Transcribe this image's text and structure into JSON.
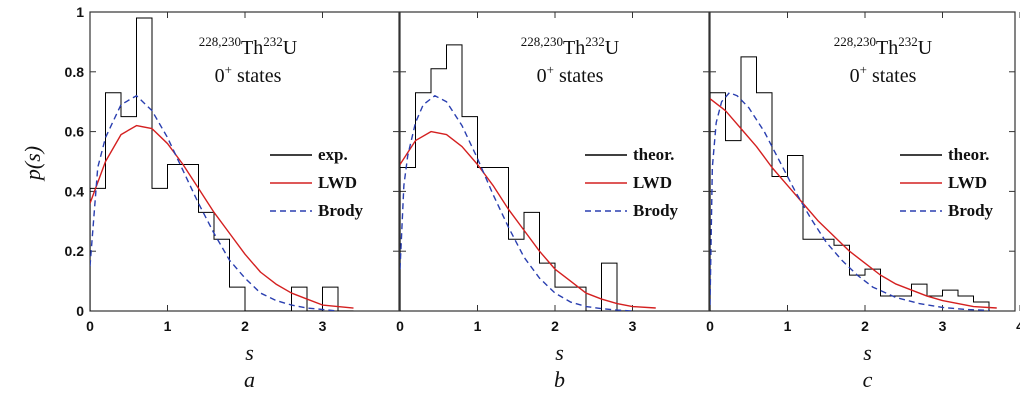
{
  "ylabel": "p(s)",
  "colors": {
    "hist": "#000000",
    "lwd": "#d42020",
    "brody": "#2a3fb0"
  },
  "chart_data": [
    {
      "type": "line",
      "panel_label": "a",
      "xlabel": "s",
      "xlim": [
        0,
        4
      ],
      "ylim": [
        0,
        1
      ],
      "xticks": [
        "0",
        "1",
        "2",
        "3"
      ],
      "yticks": [
        "0",
        "0.2",
        "0.4",
        "0.6",
        "0.8",
        "1"
      ],
      "title": {
        "sup_left": "228,230",
        "mid": "Th",
        "sup_right": "232",
        "end": "U",
        "line2_base": "0",
        "line2_sup": "+",
        "line2_rest": " states"
      },
      "legend": [
        "exp.",
        "LWD",
        "Brody"
      ],
      "histogram": {
        "bin_width": 0.2,
        "bins": [
          0,
          0.2,
          0.4,
          0.6,
          0.8,
          1.0,
          1.2,
          1.4,
          1.6,
          1.8,
          2.0,
          2.2,
          2.4,
          2.6,
          2.8,
          3.0,
          3.2
        ],
        "values": [
          0.41,
          0.73,
          0.65,
          0.98,
          0.41,
          0.49,
          0.49,
          0.33,
          0.24,
          0.08,
          0.0,
          0.0,
          0.0,
          0.08,
          0.0,
          0.08,
          0.0
        ]
      },
      "series": [
        {
          "name": "LWD",
          "x": [
            0,
            0.2,
            0.4,
            0.6,
            0.8,
            1.0,
            1.2,
            1.4,
            1.6,
            1.8,
            2.0,
            2.2,
            2.4,
            2.6,
            2.8,
            3.0,
            3.2,
            3.4
          ],
          "y": [
            0.36,
            0.5,
            0.59,
            0.62,
            0.61,
            0.56,
            0.49,
            0.41,
            0.33,
            0.26,
            0.19,
            0.13,
            0.09,
            0.06,
            0.04,
            0.02,
            0.015,
            0.01
          ]
        },
        {
          "name": "Brody",
          "x": [
            0,
            0.1,
            0.2,
            0.4,
            0.6,
            0.8,
            1.0,
            1.2,
            1.4,
            1.6,
            1.8,
            2.0,
            2.2,
            2.4,
            2.6,
            2.8,
            3.0,
            3.2
          ],
          "y": [
            0.15,
            0.48,
            0.58,
            0.69,
            0.72,
            0.67,
            0.58,
            0.47,
            0.36,
            0.26,
            0.17,
            0.11,
            0.06,
            0.035,
            0.02,
            0.01,
            0.005,
            0.0
          ]
        }
      ]
    },
    {
      "type": "line",
      "panel_label": "b",
      "xlabel": "s",
      "xlim": [
        0,
        4
      ],
      "ylim": [
        0,
        1
      ],
      "xticks": [
        "0",
        "1",
        "2",
        "3"
      ],
      "yticks": [],
      "title": {
        "sup_left": "228,230",
        "mid": "Th",
        "sup_right": "232",
        "end": "U",
        "line2_base": "0",
        "line2_sup": "+",
        "line2_rest": " states"
      },
      "legend": [
        "theor.",
        "LWD",
        "Brody"
      ],
      "histogram": {
        "bin_width": 0.2,
        "bins": [
          0,
          0.2,
          0.4,
          0.6,
          0.8,
          1.0,
          1.2,
          1.4,
          1.6,
          1.8,
          2.0,
          2.2,
          2.4,
          2.6,
          2.8
        ],
        "values": [
          0.48,
          0.73,
          0.81,
          0.89,
          0.65,
          0.48,
          0.48,
          0.24,
          0.33,
          0.16,
          0.08,
          0.08,
          0.0,
          0.16,
          0.0
        ]
      },
      "series": [
        {
          "name": "LWD",
          "x": [
            0,
            0.2,
            0.4,
            0.6,
            0.8,
            1.0,
            1.2,
            1.4,
            1.6,
            1.8,
            2.0,
            2.2,
            2.4,
            2.6,
            2.8,
            3.0,
            3.3
          ],
          "y": [
            0.49,
            0.57,
            0.6,
            0.59,
            0.55,
            0.49,
            0.42,
            0.34,
            0.27,
            0.2,
            0.14,
            0.1,
            0.06,
            0.04,
            0.025,
            0.015,
            0.01
          ]
        },
        {
          "name": "Brody",
          "x": [
            0,
            0.05,
            0.1,
            0.2,
            0.3,
            0.45,
            0.6,
            0.8,
            1.0,
            1.2,
            1.4,
            1.6,
            1.8,
            2.0,
            2.2,
            2.4,
            2.6,
            2.8,
            3.0
          ],
          "y": [
            0.14,
            0.42,
            0.52,
            0.63,
            0.69,
            0.72,
            0.7,
            0.62,
            0.51,
            0.39,
            0.28,
            0.18,
            0.11,
            0.06,
            0.03,
            0.015,
            0.008,
            0.003,
            0.0
          ]
        }
      ]
    },
    {
      "type": "line",
      "panel_label": "c",
      "xlabel": "s",
      "xlim": [
        0,
        4
      ],
      "ylim": [
        0,
        1
      ],
      "xticks": [
        "0",
        "1",
        "2",
        "3",
        "4"
      ],
      "yticks": [],
      "title": {
        "sup_left": "228,230",
        "mid": "Th",
        "sup_right": "232",
        "end": "U",
        "line2_base": "0",
        "line2_sup": "+",
        "line2_rest": " states"
      },
      "legend": [
        "theor.",
        "LWD",
        "Brody"
      ],
      "histogram": {
        "bin_width": 0.2,
        "bins": [
          0,
          0.2,
          0.4,
          0.6,
          0.8,
          1.0,
          1.2,
          1.4,
          1.6,
          1.8,
          2.0,
          2.2,
          2.4,
          2.6,
          2.8,
          3.0,
          3.2,
          3.4
        ],
        "values": [
          0.73,
          0.57,
          0.85,
          0.73,
          0.45,
          0.52,
          0.24,
          0.24,
          0.22,
          0.12,
          0.14,
          0.05,
          0.05,
          0.09,
          0.05,
          0.07,
          0.05,
          0.03
        ]
      },
      "series": [
        {
          "name": "LWD",
          "x": [
            0,
            0.2,
            0.4,
            0.6,
            0.8,
            1.0,
            1.2,
            1.4,
            1.6,
            1.8,
            2.0,
            2.2,
            2.4,
            2.6,
            2.8,
            3.0,
            3.2,
            3.4,
            3.7
          ],
          "y": [
            0.71,
            0.67,
            0.61,
            0.55,
            0.48,
            0.42,
            0.36,
            0.3,
            0.25,
            0.2,
            0.16,
            0.12,
            0.09,
            0.07,
            0.05,
            0.035,
            0.025,
            0.015,
            0.01
          ]
        },
        {
          "name": "Brody",
          "x": [
            0,
            0.03,
            0.08,
            0.15,
            0.25,
            0.35,
            0.5,
            0.7,
            0.9,
            1.1,
            1.3,
            1.5,
            1.7,
            1.9,
            2.1,
            2.4,
            2.7,
            3.0,
            3.3,
            3.6
          ],
          "y": [
            0.02,
            0.48,
            0.63,
            0.7,
            0.73,
            0.72,
            0.68,
            0.6,
            0.5,
            0.4,
            0.31,
            0.23,
            0.17,
            0.12,
            0.08,
            0.045,
            0.025,
            0.012,
            0.005,
            0.002
          ]
        }
      ]
    }
  ]
}
